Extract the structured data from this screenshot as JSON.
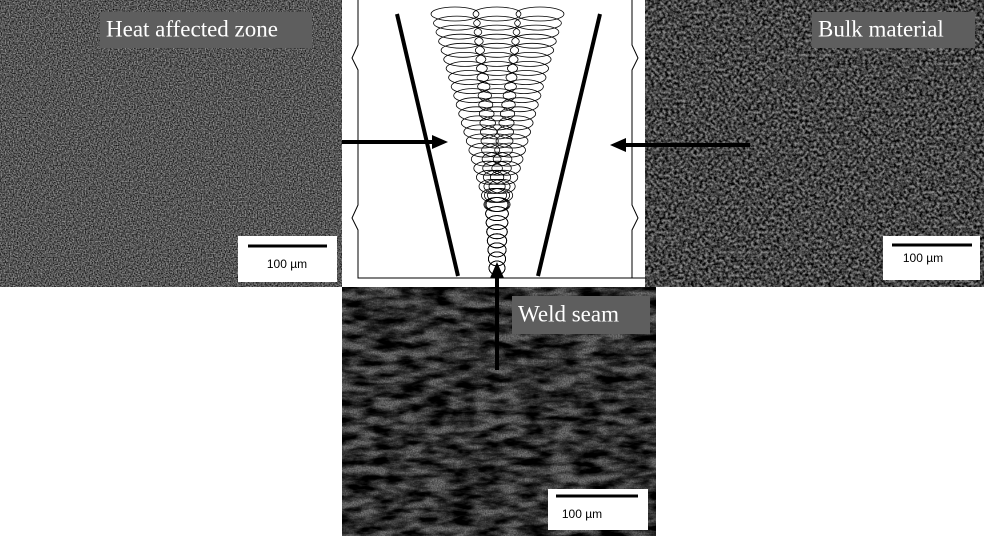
{
  "panels": [
    {
      "label": "Heat affected zone",
      "scale_bar": "100 µm"
    },
    {
      "label": "Bulk material",
      "scale_bar": "100 µm"
    },
    {
      "label": "Weld seam",
      "scale_bar": "100 µm"
    }
  ]
}
